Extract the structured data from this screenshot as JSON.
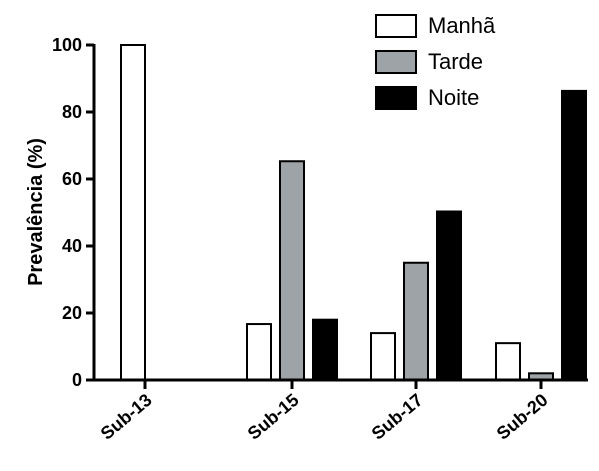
{
  "chart_data": {
    "type": "bar",
    "title": "",
    "xlabel": "",
    "ylabel": "Prevalência (%)",
    "ylim": [
      0,
      100
    ],
    "yticks": [
      0,
      20,
      40,
      60,
      80,
      100
    ],
    "categories": [
      "Sub-13",
      "Sub-15",
      "Sub-17",
      "Sub-20"
    ],
    "series": [
      {
        "name": "Manhã",
        "color": "#ffffff",
        "values": [
          100,
          16.7,
          14,
          11
        ]
      },
      {
        "name": "Tarde",
        "color": "#9ea3a8",
        "values": [
          0,
          65.3,
          35,
          2
        ]
      },
      {
        "name": "Noite",
        "color": "#000000",
        "values": [
          0,
          18,
          50.3,
          86.3
        ]
      }
    ],
    "legend": "top-right",
    "grid": false
  }
}
